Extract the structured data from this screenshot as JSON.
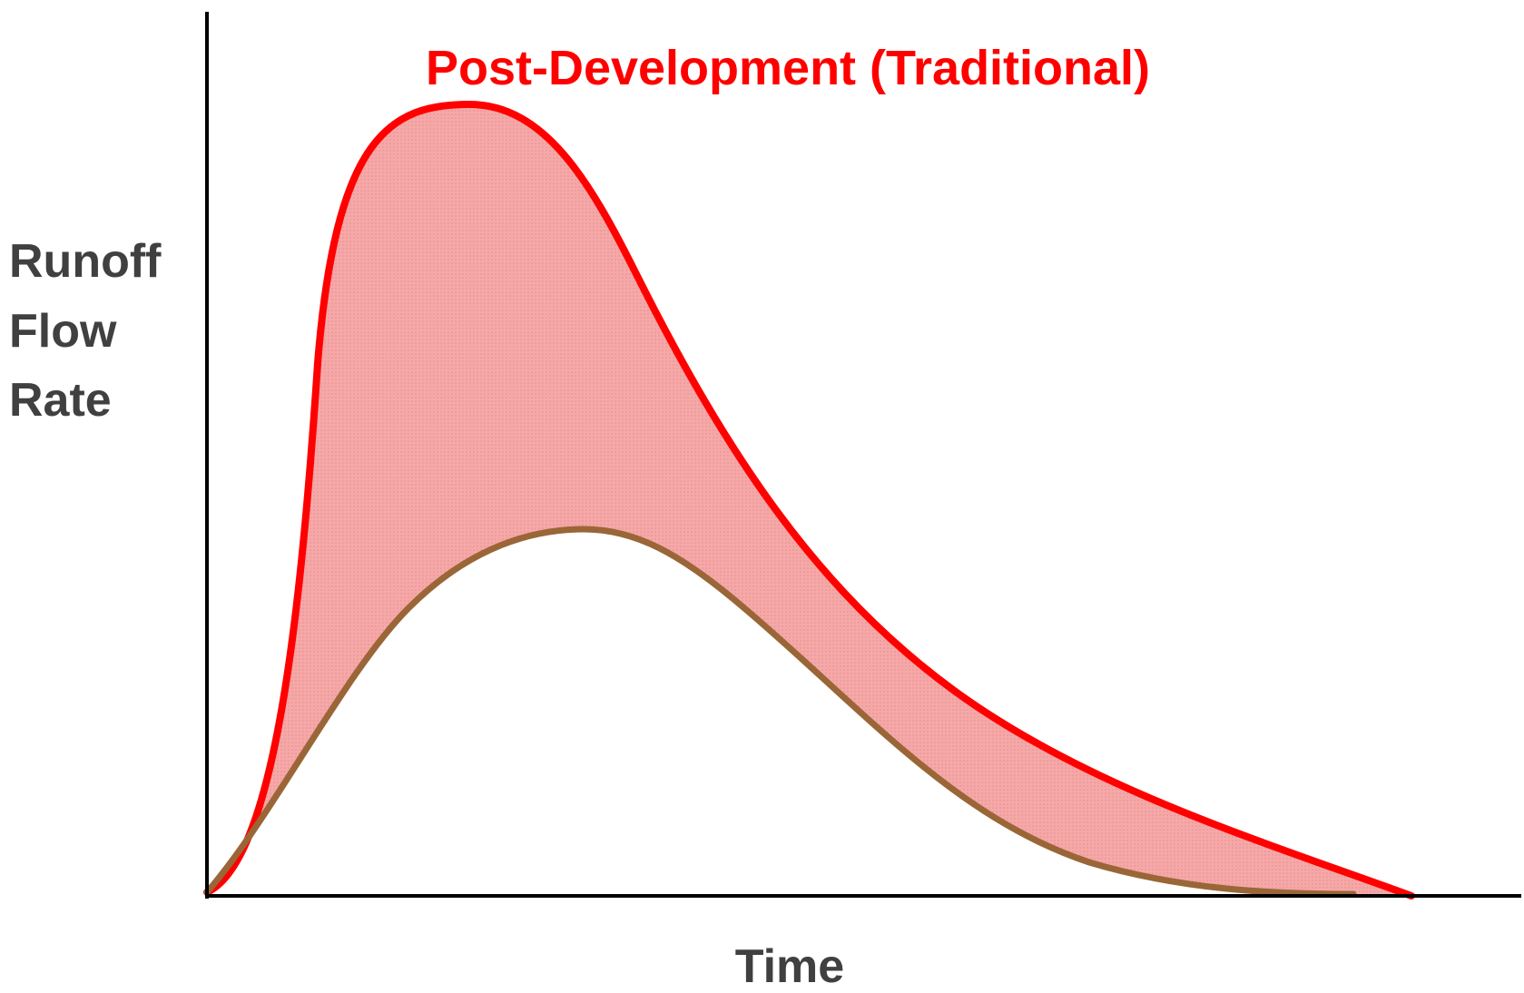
{
  "title": "Post-Development (Traditional)",
  "y_axis_label": [
    "Runoff",
    "Flow",
    "Rate"
  ],
  "x_axis_label": "Time"
}
